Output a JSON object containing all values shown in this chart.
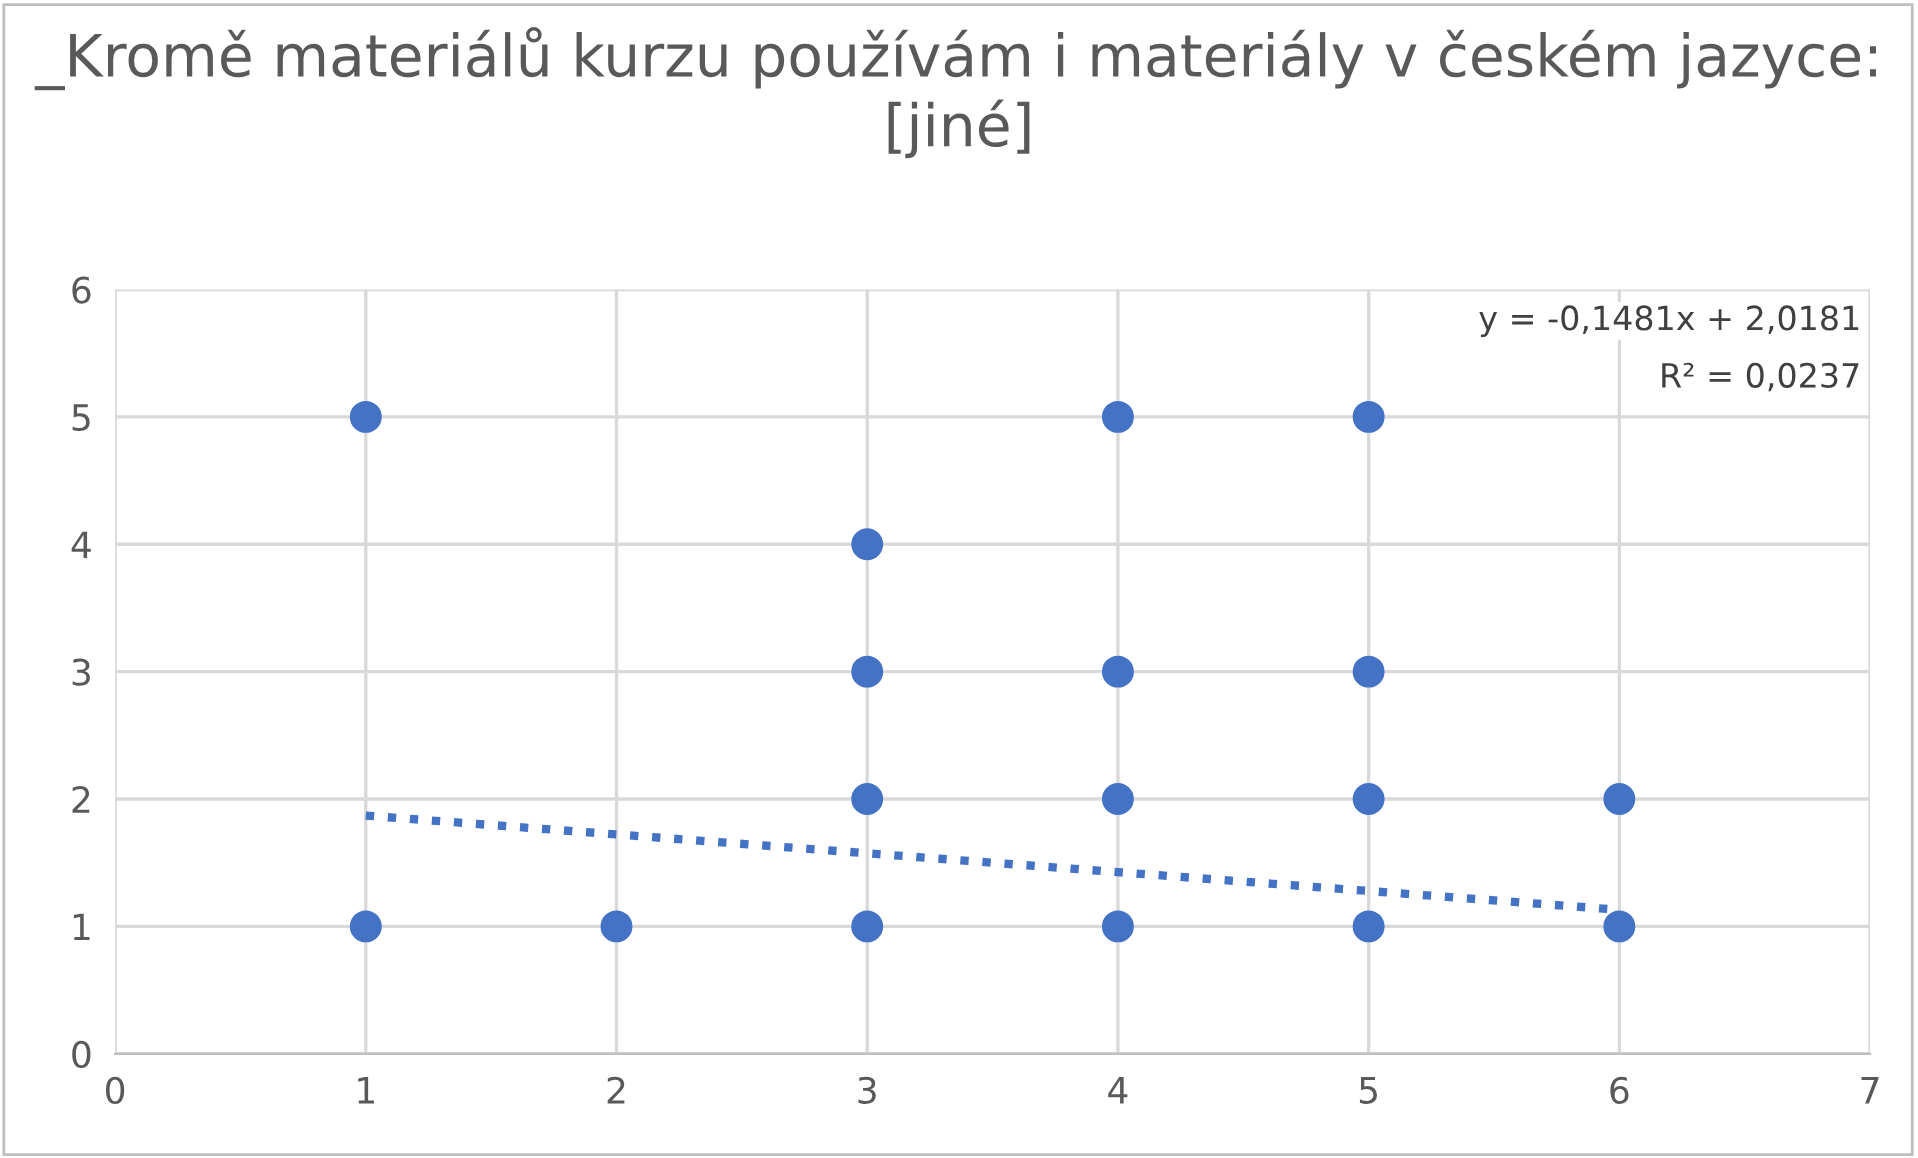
{
  "chart_data": {
    "type": "scatter",
    "title": "_Kromě materiálů kurzu používám i materiály v českém jazyce: [jiné]",
    "xlim": [
      0,
      7
    ],
    "xticks": [
      0,
      1,
      2,
      3,
      4,
      5,
      6,
      7
    ],
    "ylim": [
      0,
      6
    ],
    "yticks": [
      0,
      1,
      2,
      3,
      4,
      5,
      6
    ],
    "grid": true,
    "series": [
      {
        "color": "#4472c4",
        "marker": "circle",
        "x": [
          1,
          1,
          2,
          3,
          3,
          3,
          3,
          4,
          4,
          4,
          4,
          5,
          5,
          5,
          5,
          6,
          6
        ],
        "values": [
          5,
          1,
          1,
          4,
          3,
          2,
          1,
          5,
          3,
          2,
          1,
          5,
          3,
          2,
          1,
          2,
          1
        ]
      },
      {
        "type": "line",
        "color": "#4472c4",
        "line_style": "dotted",
        "marker": "none",
        "x": [
          1,
          6
        ],
        "values": [
          1.87,
          1.13
        ]
      }
    ],
    "annotations": [
      "y = -0,1481x + 2,0181",
      "R² = 0,0237"
    ]
  }
}
